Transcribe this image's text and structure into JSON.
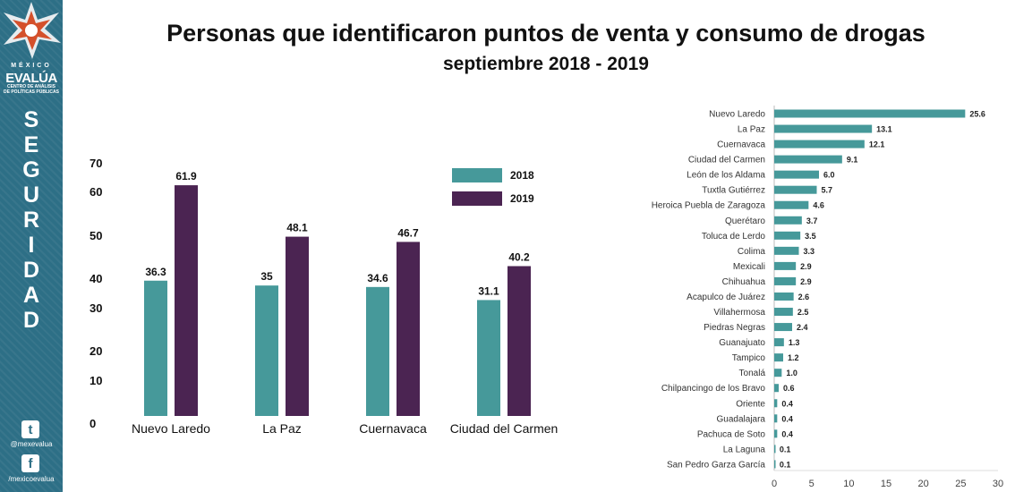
{
  "header": {
    "title": "Personas que identificaron puntos de venta y consumo de drogas",
    "subtitle": "septiembre 2018 - 2019"
  },
  "sidebar": {
    "brand_country": "MÉXICO",
    "brand_name": "EVALÚA",
    "brand_sub_1": "CENTRO DE ANÁLISIS",
    "brand_sub_2": "DE POLÍTICAS PÚBLICAS",
    "section_letters": [
      "S",
      "E",
      "G",
      "U",
      "R",
      "I",
      "D",
      "A",
      "D"
    ],
    "twitter_icon": "twitter-icon",
    "twitter_handle": "@mexevalua",
    "facebook_icon": "facebook-icon",
    "facebook_handle": "/mexicoevalua"
  },
  "colors": {
    "series_2018": "#46999a",
    "series_2019": "#4b2452",
    "hbar": "#46999a",
    "sidebar": "#2d6f86"
  },
  "chart_data": [
    {
      "type": "bar",
      "categories": [
        "Nuevo Laredo",
        "La Paz",
        "Cuernavaca",
        "Ciudad del Carmen"
      ],
      "series": [
        {
          "name": "2018",
          "values": [
            36.3,
            35,
            34.6,
            31.1
          ],
          "labels": [
            "36.3",
            "35",
            "34.6",
            "31.1"
          ]
        },
        {
          "name": "2019",
          "values": [
            61.9,
            48.1,
            46.7,
            40.2
          ],
          "labels": [
            "61.9",
            "48.1",
            "46.7",
            "40.2"
          ]
        }
      ],
      "yticks": [
        "70",
        "60",
        "50",
        "40",
        "30",
        "20",
        "10",
        "0"
      ],
      "ylim": [
        0,
        70
      ],
      "legend": "top-right",
      "grid": false
    },
    {
      "type": "bar",
      "orientation": "horizontal",
      "categories": [
        "Nuevo Laredo",
        "La Paz",
        "Cuernavaca",
        "Ciudad del Carmen",
        "León de los Aldama",
        "Tuxtla Gutiérrez",
        "Heroica Puebla de Zaragoza",
        "Querétaro",
        "Toluca de Lerdo",
        "Colima",
        "Mexicali",
        "Chihuahua",
        "Acapulco de Juárez",
        "Villahermosa",
        "Piedras Negras",
        "Guanajuato",
        "Tampico",
        "Tonalá",
        "Chilpancingo de los Bravo",
        "Oriente",
        "Guadalajara",
        "Pachuca de Soto",
        "La Laguna",
        "San Pedro Garza García"
      ],
      "values": [
        25.6,
        13.1,
        12.1,
        9.1,
        6.0,
        5.7,
        4.6,
        3.7,
        3.5,
        3.3,
        2.9,
        2.9,
        2.6,
        2.5,
        2.4,
        1.3,
        1.2,
        1.0,
        0.6,
        0.4,
        0.4,
        0.4,
        0.1,
        0.1
      ],
      "labels": [
        "25.6",
        "13.1",
        "12.1",
        "9.1",
        "6.0",
        "5.7",
        "4.6",
        "3.7",
        "3.5",
        "3.3",
        "2.9",
        "2.9",
        "2.6",
        "2.5",
        "2.4",
        "1.3",
        "1.2",
        "1.0",
        "0.6",
        "0.4",
        "0.4",
        "0.4",
        "0.1",
        "0.1"
      ],
      "xticks": [
        "0",
        "5",
        "10",
        "15",
        "20",
        "25",
        "30"
      ],
      "xlim": [
        0,
        30
      ],
      "grid": false
    }
  ]
}
